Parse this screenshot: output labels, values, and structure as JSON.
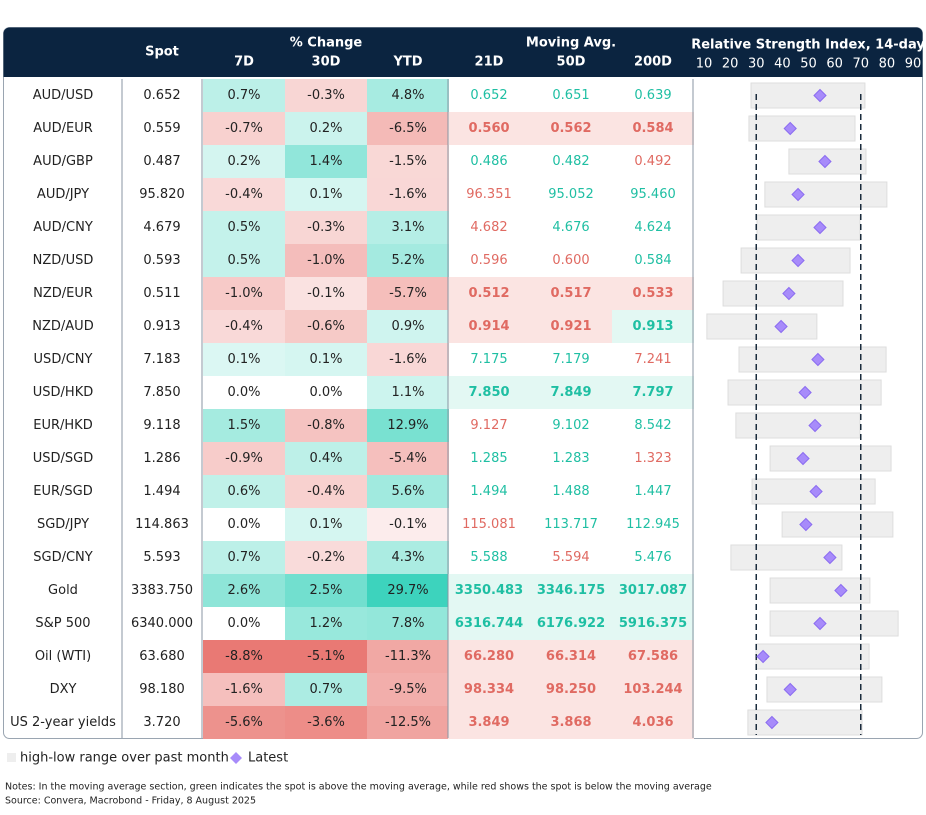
{
  "header": {
    "spot": "Spot",
    "pct_change": "% Change",
    "pct_cols": [
      "7D",
      "30D",
      "YTD"
    ],
    "moving_avg": "Moving Avg.",
    "ma_cols": [
      "21D",
      "50D",
      "200D"
    ],
    "rsi_title": "Relative Strength Index, 14-day"
  },
  "rsi_axis": {
    "xlim": [
      10,
      90
    ],
    "xticks": [
      10,
      20,
      30,
      40,
      50,
      60,
      70,
      80,
      90
    ],
    "reference_lines": [
      30,
      70
    ]
  },
  "rows": [
    {
      "name": "AUD/USD",
      "spot": "0.652",
      "change": [
        "0.7%",
        "-0.3%",
        "4.8%"
      ],
      "ma": [
        "0.652",
        "0.651",
        "0.639"
      ],
      "highlight": false,
      "rsi": {
        "low": 28,
        "high": 71.6,
        "latest": 54.4
      }
    },
    {
      "name": "AUD/EUR",
      "spot": "0.559",
      "change": [
        "-0.7%",
        "0.2%",
        "-6.5%"
      ],
      "ma": [
        "0.560",
        "0.562",
        "0.584"
      ],
      "highlight": true,
      "rsi": {
        "low": 27.2,
        "high": 67.8,
        "latest": 43
      }
    },
    {
      "name": "AUD/GBP",
      "spot": "0.487",
      "change": [
        "0.2%",
        "1.4%",
        "-1.5%"
      ],
      "ma": [
        "0.486",
        "0.482",
        "0.492"
      ],
      "highlight": false,
      "rsi": {
        "low": 42.5,
        "high": 72,
        "latest": 56.3
      }
    },
    {
      "name": "AUD/JPY",
      "spot": "95.820",
      "change": [
        "-0.4%",
        "0.1%",
        "-1.6%"
      ],
      "ma": [
        "96.351",
        "95.052",
        "95.460"
      ],
      "highlight": false,
      "rsi": {
        "low": 33.3,
        "high": 80,
        "latest": 46
      }
    },
    {
      "name": "AUD/CNY",
      "spot": "4.679",
      "change": [
        "0.5%",
        "-0.3%",
        "3.1%"
      ],
      "ma": [
        "4.682",
        "4.676",
        "4.624"
      ],
      "highlight": false,
      "rsi": {
        "low": 30.3,
        "high": 69.7,
        "latest": 54.4
      }
    },
    {
      "name": "NZD/USD",
      "spot": "0.593",
      "change": [
        "0.5%",
        "-1.0%",
        "5.2%"
      ],
      "ma": [
        "0.596",
        "0.600",
        "0.584"
      ],
      "highlight": false,
      "rsi": {
        "low": 24.2,
        "high": 65.9,
        "latest": 46
      }
    },
    {
      "name": "NZD/EUR",
      "spot": "0.511",
      "change": [
        "-1.0%",
        "-0.1%",
        "-5.7%"
      ],
      "ma": [
        "0.512",
        "0.517",
        "0.533"
      ],
      "highlight": true,
      "rsi": {
        "low": 17.3,
        "high": 63.2,
        "latest": 42.5
      }
    },
    {
      "name": "NZD/AUD",
      "spot": "0.913",
      "change": [
        "-0.4%",
        "-0.6%",
        "0.9%"
      ],
      "ma": [
        "0.914",
        "0.921",
        "0.913"
      ],
      "highlight": true,
      "rsi": {
        "low": 11.1,
        "high": 53.2,
        "latest": 39.5
      }
    },
    {
      "name": "USD/CNY",
      "spot": "7.183",
      "change": [
        "0.1%",
        "0.1%",
        "-1.6%"
      ],
      "ma": [
        "7.175",
        "7.179",
        "7.241"
      ],
      "highlight": false,
      "rsi": {
        "low": 23.4,
        "high": 79.7,
        "latest": 53.6
      }
    },
    {
      "name": "USD/HKD",
      "spot": "7.850",
      "change": [
        "0.0%",
        "0.0%",
        "1.1%"
      ],
      "ma": [
        "7.850",
        "7.849",
        "7.797"
      ],
      "highlight": true,
      "rsi": {
        "low": 19.2,
        "high": 77.8,
        "latest": 48.7
      }
    },
    {
      "name": "EUR/HKD",
      "spot": "9.118",
      "change": [
        "1.5%",
        "-0.8%",
        "12.9%"
      ],
      "ma": [
        "9.127",
        "9.102",
        "8.542"
      ],
      "highlight": false,
      "rsi": {
        "low": 22.2,
        "high": 69.7,
        "latest": 52.5
      }
    },
    {
      "name": "USD/SGD",
      "spot": "1.286",
      "change": [
        "-0.9%",
        "0.4%",
        "-5.4%"
      ],
      "ma": [
        "1.285",
        "1.283",
        "1.323"
      ],
      "highlight": false,
      "rsi": {
        "low": 35.3,
        "high": 81.6,
        "latest": 47.9
      }
    },
    {
      "name": "EUR/SGD",
      "spot": "1.494",
      "change": [
        "0.6%",
        "-0.4%",
        "5.6%"
      ],
      "ma": [
        "1.494",
        "1.488",
        "1.447"
      ],
      "highlight": false,
      "rsi": {
        "low": 28.4,
        "high": 75.5,
        "latest": 52.9
      }
    },
    {
      "name": "SGD/JPY",
      "spot": "114.863",
      "change": [
        "0.0%",
        "0.1%",
        "-0.1%"
      ],
      "ma": [
        "115.081",
        "113.717",
        "112.945"
      ],
      "highlight": false,
      "rsi": {
        "low": 39.9,
        "high": 82.3,
        "latest": 49
      }
    },
    {
      "name": "SGD/CNY",
      "spot": "5.593",
      "change": [
        "0.7%",
        "-0.2%",
        "4.3%"
      ],
      "ma": [
        "5.588",
        "5.594",
        "5.476"
      ],
      "highlight": false,
      "rsi": {
        "low": 20.3,
        "high": 62.8,
        "latest": 58.2
      }
    },
    {
      "name": "Gold",
      "spot": "3383.750",
      "change": [
        "2.6%",
        "2.5%",
        "29.7%"
      ],
      "ma": [
        "3350.483",
        "3346.175",
        "3017.087"
      ],
      "highlight": true,
      "rsi": {
        "low": 35.3,
        "high": 73.5,
        "latest": 62.4
      }
    },
    {
      "name": "S&P 500",
      "spot": "6340.000",
      "change": [
        "0.0%",
        "1.2%",
        "7.8%"
      ],
      "ma": [
        "6316.744",
        "6176.922",
        "5916.375"
      ],
      "highlight": true,
      "rsi": {
        "low": 35.3,
        "high": 84.3,
        "latest": 54.4
      }
    },
    {
      "name": "Oil (WTI)",
      "spot": "63.680",
      "change": [
        "-8.8%",
        "-5.1%",
        "-11.3%"
      ],
      "ma": [
        "66.280",
        "66.314",
        "67.586"
      ],
      "highlight": true,
      "rsi": {
        "low": 29.9,
        "high": 73.2,
        "latest": 32.6
      }
    },
    {
      "name": "DXY",
      "spot": "98.180",
      "change": [
        "-1.6%",
        "0.7%",
        "-9.5%"
      ],
      "ma": [
        "98.334",
        "98.250",
        "103.244"
      ],
      "highlight": true,
      "rsi": {
        "low": 34.1,
        "high": 78.1,
        "latest": 43
      }
    },
    {
      "name": "US 2-year yields",
      "spot": "3.720",
      "change": [
        "-5.6%",
        "-3.6%",
        "-12.5%"
      ],
      "ma": [
        "3.849",
        "3.868",
        "4.036"
      ],
      "highlight": true,
      "rsi": {
        "low": 26.8,
        "high": 70.5,
        "latest": 36
      }
    }
  ],
  "legend": {
    "range": "high-low range over past month",
    "latest": "Latest"
  },
  "notes": "Notes: In the moving average section, green indicates the spot is above the moving average, while red shows the spot is below the moving average",
  "source": "Source: Convera, Macrobond - Friday, 8 August 2025"
}
